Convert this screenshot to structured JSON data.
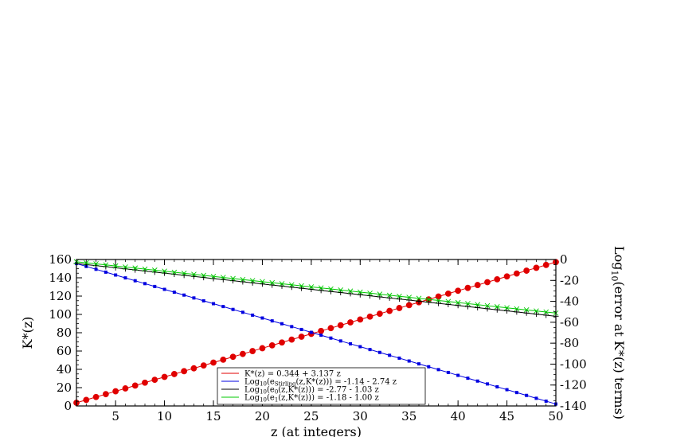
{
  "chart_data": {
    "type": "line",
    "xlabel": "z (at integers)",
    "ylabel_left": "K*(z)",
    "ylabel_right_parts": [
      "Log",
      "10",
      "(error at K*(z) terms)"
    ],
    "xlim": [
      1,
      50
    ],
    "ylim_left": [
      0,
      160
    ],
    "ylim_right": [
      -140,
      0
    ],
    "xticks": [
      5,
      10,
      15,
      20,
      25,
      30,
      35,
      40,
      45,
      50
    ],
    "yticks_left": [
      0,
      20,
      40,
      60,
      80,
      100,
      120,
      140,
      160
    ],
    "yticks_right": [
      0,
      -20,
      -40,
      -60,
      -80,
      -100,
      -120,
      -140
    ],
    "legend_position": "bottom-center",
    "series": [
      {
        "name": "K*(z) = 0.344 + 3.137 z",
        "legend_parts": [
          {
            "t": "K*(z) = 0.344 + 3.137 z"
          }
        ],
        "axis": "left",
        "intercept": 0.344,
        "slope": 3.137,
        "color": "#e00000",
        "marker": "circle"
      },
      {
        "name": "Log10(eStirling(z,K*(z))) = -1.14 - 2.74 z",
        "legend_parts": [
          {
            "t": "Log"
          },
          {
            "t": "10",
            "sub": true
          },
          {
            "t": "(e"
          },
          {
            "t": "Stirling",
            "sub": true
          },
          {
            "t": "(z,K*(z))) = -1.14 - 2.74 z"
          }
        ],
        "axis": "right",
        "intercept": -1.14,
        "slope": -2.74,
        "color": "#0000e0",
        "marker": "square"
      },
      {
        "name": "Log10(e0(z,K*(z))) = -2.77 - 1.03 z",
        "legend_parts": [
          {
            "t": "Log"
          },
          {
            "t": "10",
            "sub": true
          },
          {
            "t": "(e"
          },
          {
            "t": "0",
            "sub": true
          },
          {
            "t": "(z,K*(z))) = -2.77 - 1.03 z"
          }
        ],
        "axis": "right",
        "intercept": -2.77,
        "slope": -1.03,
        "color": "#000000",
        "marker": "plus"
      },
      {
        "name": "Log10(e1(z,K*(z))) = -1.18 - 1.00 z",
        "legend_parts": [
          {
            "t": "Log"
          },
          {
            "t": "10",
            "sub": true
          },
          {
            "t": "(e"
          },
          {
            "t": "1",
            "sub": true
          },
          {
            "t": "(z,K*(z))) = -1.18 - 1.00 z"
          }
        ],
        "axis": "right",
        "intercept": -1.18,
        "slope": -1.0,
        "color": "#00c800",
        "marker": "x"
      }
    ]
  }
}
